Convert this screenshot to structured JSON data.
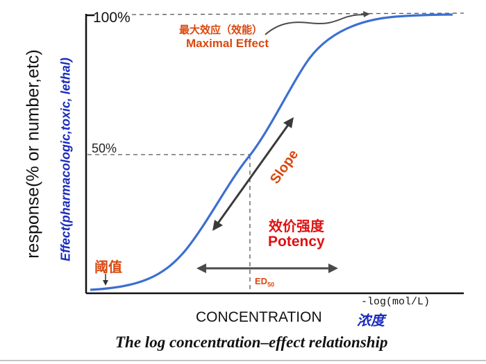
{
  "y_axis": {
    "label": "response(% or number,etc)",
    "label_secondary": "Effect(pharmacologic,toxic, lethal)",
    "tick_100": "100%",
    "tick_50": "50%"
  },
  "x_axis": {
    "label": "CONCENTRATION",
    "label_cn": "浓度",
    "unit": "-log(mol/L)"
  },
  "annotations": {
    "maximal_effect_cn": "最大效应（效能）",
    "maximal_effect_en": "Maximal Effect",
    "slope": "Slope",
    "potency_cn": "效价强度",
    "potency_en": "Potency",
    "threshold_cn": "阈值",
    "ed50_main": "ED",
    "ed50_sub": "50"
  },
  "caption": "The log concentration–effect relationship",
  "colors": {
    "curve": "#3d6fd0",
    "axis": "#111111",
    "annotation_orange": "#d9480f",
    "annotation_red": "#e01010",
    "label_blue": "#1a2bbf",
    "arrow_gray": "#4a4a4a",
    "dashed": "#555555"
  }
}
